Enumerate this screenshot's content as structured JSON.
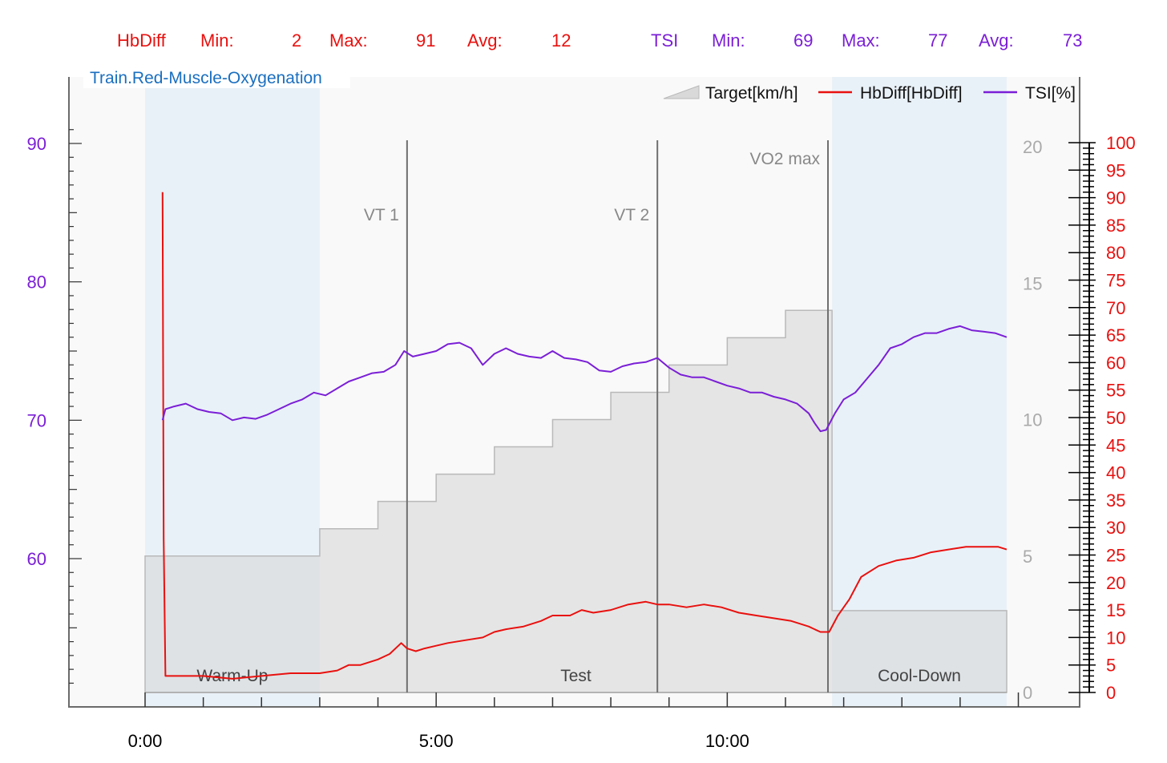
{
  "stats": {
    "hbdiff": {
      "label": "HbDiff",
      "min_label": "Min:",
      "min": "2",
      "max_label": "Max:",
      "max": "91",
      "avg_label": "Avg:",
      "avg": "12",
      "color": "#e8110f"
    },
    "tsi": {
      "label": "TSI",
      "min_label": "Min:",
      "min": "69",
      "max_label": "Max:",
      "max": "77",
      "avg_label": "Avg:",
      "avg": "73",
      "color": "#7b1fd6"
    }
  },
  "chart_data": {
    "type": "line",
    "title": "Train.Red-Muscle-Oxygenation",
    "title_color": "#1a6fc0",
    "x_unit": "minutes",
    "x_ticks": [
      0,
      5,
      10
    ],
    "x_tick_labels": [
      "0:00",
      "5:00",
      "10:00"
    ],
    "xlim": [
      -1.3,
      14.9
    ],
    "axes": {
      "tsi_left": {
        "ylim": [
          50,
          93
        ],
        "ticks": [
          60,
          70,
          80,
          90
        ],
        "color": "#7b1fd6"
      },
      "target_right_inner": {
        "ylim": [
          0,
          20
        ],
        "ticks": [
          0,
          5,
          10,
          15,
          20
        ],
        "color": "#aaaaaa"
      },
      "hbdiff_right_outer": {
        "ylim": [
          0,
          100
        ],
        "ticks": [
          0,
          5,
          10,
          15,
          20,
          25,
          30,
          35,
          40,
          45,
          50,
          55,
          60,
          65,
          70,
          75,
          80,
          85,
          90,
          95,
          100
        ],
        "color": "#e8110f"
      }
    },
    "legend": {
      "position": "top-right",
      "entries": [
        {
          "label": "Target[km/h]",
          "kind": "area",
          "color": "#c8c8c8"
        },
        {
          "label": "HbDiff[HbDiff]",
          "kind": "line",
          "color": "#e8110f"
        },
        {
          "label": "TSI[%]",
          "kind": "line",
          "color": "#7b1fd6"
        }
      ]
    },
    "phases": [
      {
        "label": "Warm-Up",
        "start": 0,
        "end": 3.0,
        "shaded": true
      },
      {
        "label": "Test",
        "start": 3.0,
        "end": 11.8,
        "shaded": false
      },
      {
        "label": "Cool-Down",
        "start": 11.8,
        "end": 14.8,
        "shaded": true
      }
    ],
    "markers": [
      {
        "label": "VT 1",
        "x": 4.5
      },
      {
        "label": "VT 2",
        "x": 8.8
      },
      {
        "label": "VO2 max",
        "x": 11.73
      }
    ],
    "series": [
      {
        "name": "Target[km/h]",
        "axis": "target_right_inner",
        "kind": "step",
        "color": "#c8c8c8",
        "x": [
          0,
          3,
          4,
          5,
          6,
          7,
          8,
          9,
          10,
          11,
          11.8,
          14.8
        ],
        "values": [
          5,
          6,
          7,
          8,
          9,
          10,
          11,
          12,
          13,
          14,
          3,
          3
        ]
      },
      {
        "name": "HbDiff[HbDiff]",
        "axis": "hbdiff_right_outer",
        "kind": "line",
        "color": "#e8110f",
        "x": [
          0.3,
          0.32,
          0.35,
          0.5,
          0.8,
          1.0,
          1.5,
          2.0,
          2.5,
          3.0,
          3.3,
          3.5,
          3.7,
          4.0,
          4.2,
          4.4,
          4.5,
          4.65,
          4.8,
          5.0,
          5.2,
          5.5,
          5.8,
          6.0,
          6.2,
          6.5,
          6.8,
          7.0,
          7.3,
          7.5,
          7.7,
          8.0,
          8.3,
          8.6,
          8.8,
          9.0,
          9.3,
          9.6,
          9.9,
          10.2,
          10.5,
          10.8,
          11.1,
          11.4,
          11.6,
          11.75,
          11.9,
          12.1,
          12.3,
          12.6,
          12.9,
          13.2,
          13.5,
          13.8,
          14.1,
          14.4,
          14.65,
          14.8
        ],
        "values": [
          91,
          28,
          3,
          3,
          3,
          3,
          2.5,
          3,
          3.5,
          3.5,
          4,
          5,
          5,
          6,
          7,
          9,
          8,
          7.5,
          8,
          8.5,
          9,
          9.5,
          10,
          11,
          11.5,
          12,
          13,
          14,
          14,
          15,
          14.5,
          15,
          16,
          16.5,
          16,
          16,
          15.5,
          16,
          15.5,
          14.5,
          14,
          13.5,
          13,
          12,
          11,
          11,
          14,
          17,
          21,
          23,
          24,
          24.5,
          25.5,
          26,
          26.5,
          26.5,
          26.5,
          26
        ]
      },
      {
        "name": "TSI[%]",
        "axis": "tsi_left",
        "kind": "line",
        "color": "#7b1fd6",
        "x": [
          0.3,
          0.35,
          0.5,
          0.7,
          0.9,
          1.1,
          1.3,
          1.5,
          1.7,
          1.9,
          2.1,
          2.3,
          2.5,
          2.7,
          2.9,
          3.1,
          3.3,
          3.5,
          3.7,
          3.9,
          4.1,
          4.3,
          4.45,
          4.6,
          4.8,
          5.0,
          5.2,
          5.4,
          5.6,
          5.8,
          6.0,
          6.2,
          6.4,
          6.6,
          6.8,
          7.0,
          7.2,
          7.4,
          7.6,
          7.8,
          8.0,
          8.2,
          8.4,
          8.6,
          8.8,
          9.0,
          9.2,
          9.4,
          9.6,
          9.8,
          10.0,
          10.2,
          10.4,
          10.6,
          10.8,
          11.0,
          11.2,
          11.4,
          11.5,
          11.6,
          11.7,
          11.85,
          12.0,
          12.2,
          12.4,
          12.6,
          12.8,
          13.0,
          13.2,
          13.4,
          13.6,
          13.8,
          14.0,
          14.2,
          14.4,
          14.6,
          14.8
        ],
        "values": [
          70,
          70.8,
          71,
          71.2,
          70.8,
          70.6,
          70.5,
          70,
          70.2,
          70.1,
          70.4,
          70.8,
          71.2,
          71.5,
          72,
          71.8,
          72.3,
          72.8,
          73.1,
          73.4,
          73.5,
          74,
          75,
          74.6,
          74.8,
          75,
          75.5,
          75.6,
          75.2,
          74,
          74.8,
          75.2,
          74.8,
          74.6,
          74.5,
          75,
          74.5,
          74.4,
          74.2,
          73.6,
          73.5,
          73.9,
          74.1,
          74.2,
          74.5,
          73.8,
          73.3,
          73.1,
          73.1,
          72.8,
          72.5,
          72.3,
          72,
          72,
          71.7,
          71.5,
          71.2,
          70.5,
          69.8,
          69.2,
          69.3,
          70.5,
          71.5,
          72,
          73,
          74,
          75.2,
          75.5,
          76,
          76.3,
          76.3,
          76.6,
          76.8,
          76.5,
          76.4,
          76.3,
          76
        ]
      }
    ]
  }
}
